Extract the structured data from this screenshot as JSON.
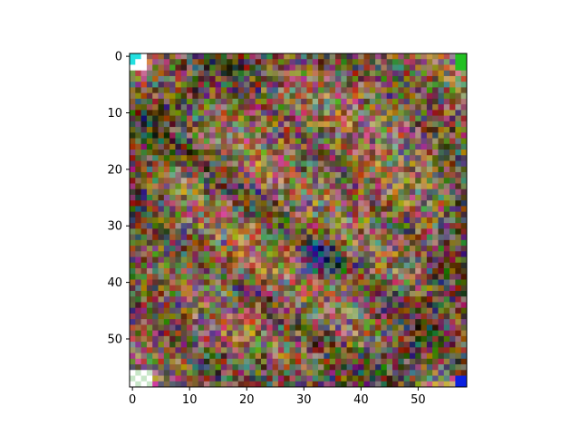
{
  "chart_data": {
    "type": "heatmap",
    "title": "",
    "xlabel": "",
    "ylabel": "",
    "image_size": [
      59,
      59
    ],
    "xlim": [
      -0.5,
      58.5
    ],
    "ylim": [
      58.5,
      -0.5
    ],
    "grid": false,
    "x_ticks": [
      0,
      10,
      20,
      30,
      40,
      50
    ],
    "y_ticks": [
      0,
      10,
      20,
      30,
      40,
      50
    ],
    "x_tick_labels": [
      "0",
      "10",
      "20",
      "30",
      "40",
      "50"
    ],
    "y_tick_labels": [
      "0",
      "10",
      "20",
      "30",
      "40",
      "50"
    ],
    "content": "noisy multicolor pixel image of a close-up eye",
    "palette": {
      "skin_base": "#9a7a5c",
      "dark_stripe": "#3a2a22",
      "iris": "#1a2a8a",
      "corner_white": "#ffffff",
      "corner_cyan": "#22e0e0",
      "corner_green": "#22c022",
      "corner_blue": "#0a20e0"
    }
  }
}
